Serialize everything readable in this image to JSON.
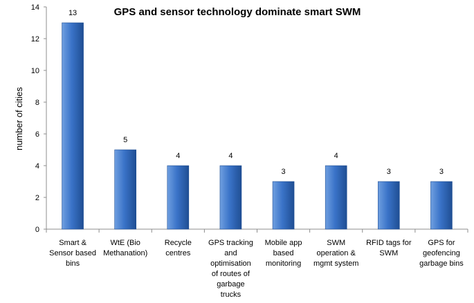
{
  "chart_data": {
    "type": "bar",
    "title": "GPS and sensor technology dominate smart SWM",
    "xlabel": "",
    "ylabel": "number of cities",
    "ylim": [
      0,
      14
    ],
    "yticks": [
      0,
      2,
      4,
      6,
      8,
      10,
      12,
      14
    ],
    "grid": false,
    "categories": [
      [
        "Smart &",
        "Sensor based",
        "bins"
      ],
      [
        "WtE (Bio",
        "Methanation)"
      ],
      [
        "Recycle",
        "centres"
      ],
      [
        "GPS tracking",
        "and",
        "optimisation",
        "of routes of",
        "garbage",
        "trucks"
      ],
      [
        "Mobile app",
        "based",
        "monitoring"
      ],
      [
        "SWM",
        "operation &",
        "mgmt system"
      ],
      [
        "RFID tags for",
        "SWM"
      ],
      [
        "GPS for",
        "geofencing",
        "garbage bins"
      ]
    ],
    "values": [
      13,
      5,
      4,
      4,
      3,
      4,
      3,
      3
    ],
    "data_labels": [
      "13",
      "5",
      "4",
      "4",
      "3",
      "4",
      "3",
      "3"
    ],
    "colors": {
      "bar_light": "#6f9fe0",
      "bar_mid": "#3a73c8",
      "bar_dark": "#1f4e93",
      "axis": "#8c8c8c"
    }
  }
}
